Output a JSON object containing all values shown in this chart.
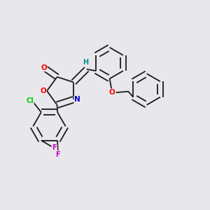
{
  "background_color": "#e8e8ec",
  "bond_color": "#1a1a1a",
  "atom_colors": {
    "O": "#ff0000",
    "N": "#0000cd",
    "Cl": "#00cc00",
    "F": "#cc00cc",
    "H": "#008b8b",
    "C": "#1a1a1a"
  },
  "figsize": [
    3.0,
    3.0
  ],
  "dpi": 100,
  "lw": 1.3
}
